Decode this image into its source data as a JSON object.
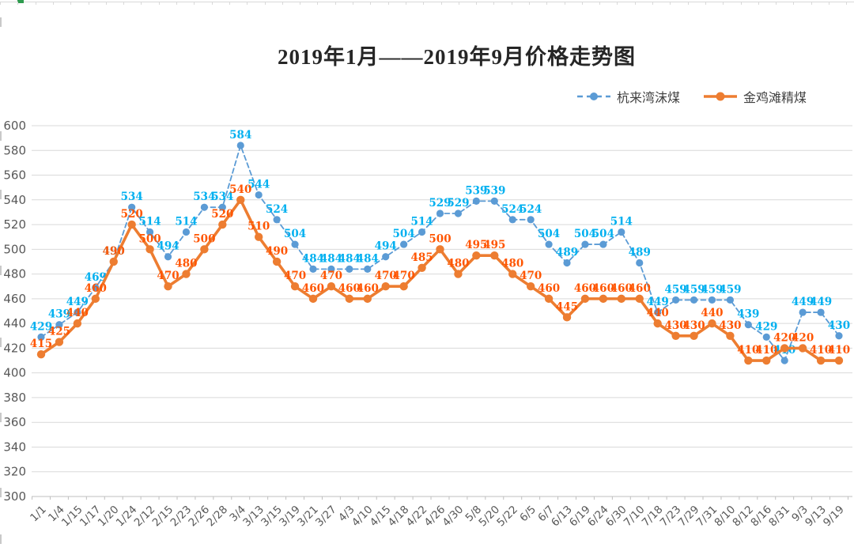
{
  "title": "2019年1月——2019年9月价格走势图",
  "chart_data": {
    "type": "line",
    "title": "2019年1月——2019年9月价格走势图",
    "categories": [
      "1/1",
      "1/4",
      "1/15",
      "1/17",
      "1/20",
      "1/24",
      "2/12",
      "2/15",
      "2/23",
      "2/26",
      "2/28",
      "3/4",
      "3/13",
      "3/15",
      "3/19",
      "3/21",
      "3/27",
      "4/3",
      "4/10",
      "4/15",
      "4/18",
      "4/22",
      "4/26",
      "4/30",
      "5/8",
      "5/20",
      "5/22",
      "6/5",
      "6/7",
      "6/13",
      "6/19",
      "6/24",
      "6/30",
      "7/10",
      "7/18",
      "7/23",
      "7/29",
      "7/31",
      "8/10",
      "8/12",
      "8/16",
      "8/31",
      "9/3",
      "9/13",
      "9/19"
    ],
    "series": [
      {
        "name": "杭来湾沫煤",
        "line_style": "dashed",
        "line_color": "#5B9BD5",
        "label_color": "#00B0F0",
        "values": [
          429,
          439,
          449,
          469,
          490,
          534,
          514,
          494,
          514,
          534,
          534,
          584,
          544,
          524,
          504,
          484,
          484,
          484,
          484,
          494,
          504,
          514,
          529,
          529,
          539,
          539,
          524,
          524,
          504,
          489,
          504,
          504,
          514,
          489,
          449,
          459,
          459,
          459,
          459,
          439,
          429,
          410,
          449,
          449,
          430
        ]
      },
      {
        "name": "金鸡滩精煤",
        "line_style": "solid",
        "line_color": "#ED7D31",
        "label_color": "#FF5500",
        "values": [
          415,
          425,
          440,
          460,
          490,
          520,
          500,
          470,
          480,
          500,
          520,
          540,
          510,
          490,
          470,
          460,
          470,
          460,
          460,
          470,
          470,
          485,
          500,
          480,
          495,
          495,
          480,
          470,
          460,
          445,
          460,
          460,
          460,
          460,
          440,
          430,
          430,
          440,
          430,
          410,
          410,
          420,
          420,
          410,
          410
        ]
      }
    ],
    "ylim": [
      300,
      600
    ],
    "y_tick_step": 20,
    "y_ticks": [
      300,
      320,
      340,
      360,
      380,
      400,
      420,
      440,
      460,
      480,
      500,
      520,
      540,
      560,
      580,
      600
    ],
    "grid": true,
    "data_labels": true,
    "legend_position": "top-right",
    "xlabel": "",
    "ylabel": ""
  },
  "style": {
    "grid_color": "#D9D9D9",
    "axis_color": "#BFBFBF",
    "axis_text_color": "#595959",
    "background": "#FFFFFF"
  }
}
